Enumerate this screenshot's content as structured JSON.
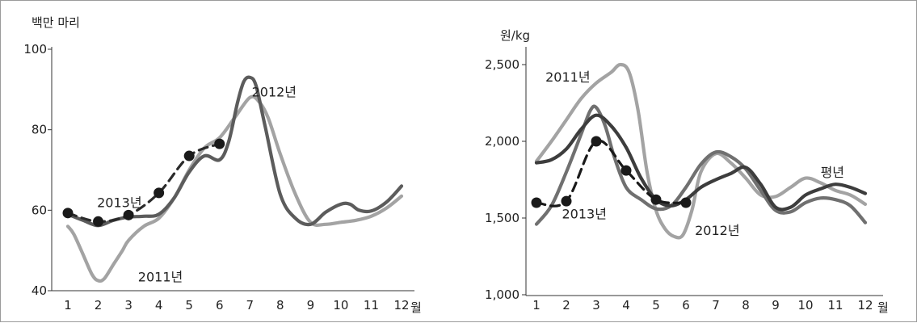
{
  "chart_data": [
    {
      "type": "line",
      "ylabel": "백만 마리",
      "xunit": "월",
      "ylim": [
        40,
        100
      ],
      "yticks": [
        40,
        60,
        80,
        100
      ],
      "x": [
        1,
        2,
        3,
        4,
        5,
        6,
        7,
        8,
        9,
        10,
        11,
        12
      ],
      "xtick_labels": [
        "1",
        "2",
        "3",
        "4",
        "5",
        "6",
        "7",
        "8",
        "9",
        "10",
        "11",
        "12"
      ],
      "grid": false,
      "series": [
        {
          "name": "2011년",
          "color": "#a3a3a3",
          "dashed": false,
          "x": [
            1,
            1.2,
            1.5,
            1.8,
            2,
            2.2,
            2.5,
            2.8,
            3,
            3.5,
            4,
            4.5,
            5,
            5.5,
            6,
            6.5,
            7,
            7.3,
            7.6,
            8,
            8.5,
            9,
            9.5,
            10,
            10.5,
            11,
            11.5,
            12
          ],
          "values": [
            56,
            54,
            49,
            44,
            42.5,
            43,
            46.5,
            50,
            52.5,
            56,
            58,
            63,
            70,
            75.5,
            78,
            83,
            88,
            87,
            83,
            74,
            64,
            57,
            56.5,
            57,
            57.5,
            58.5,
            60.5,
            63.5
          ]
        },
        {
          "name": "2012년",
          "color": "#5c5c5c",
          "dashed": false,
          "x": [
            1,
            1.5,
            2,
            2.5,
            3,
            3.5,
            4,
            4.5,
            5,
            5.5,
            6,
            6.3,
            6.6,
            6.8,
            7,
            7.2,
            7.5,
            8,
            8.5,
            9,
            9.5,
            10,
            10.3,
            10.6,
            11,
            11.5,
            12
          ],
          "values": [
            59,
            57.5,
            56.2,
            57.5,
            58.3,
            58.5,
            59,
            63,
            69.5,
            73.5,
            72.5,
            77,
            87,
            92,
            93,
            91,
            81,
            64,
            58,
            56.5,
            59.5,
            61.5,
            61.5,
            60,
            59.8,
            62,
            66
          ]
        },
        {
          "name": "2013년",
          "color": "#2b2b2b",
          "dashed": true,
          "markers": true,
          "x": [
            1,
            2,
            3,
            4,
            5,
            6
          ],
          "values": [
            59.3,
            57.2,
            58.8,
            64.3,
            73.5,
            76.5
          ]
        }
      ],
      "annotations": [
        {
          "text": "2012년",
          "x": 7.8,
          "y": 89.5
        },
        {
          "text": "2013년",
          "x": 2.7,
          "y": 62
        },
        {
          "text": "2011년",
          "x": 4.05,
          "y": 43.5
        }
      ]
    },
    {
      "type": "line",
      "ylabel": "원/kg",
      "xunit": "월",
      "ylim": [
        1000,
        2500
      ],
      "yticks": [
        1000,
        1500,
        2000,
        2500
      ],
      "ytick_labels": [
        "1,000",
        "1,500",
        "2,000",
        "2,500"
      ],
      "x": [
        1,
        2,
        3,
        4,
        5,
        6,
        7,
        8,
        9,
        10,
        11,
        12
      ],
      "xtick_labels": [
        "1",
        "2",
        "3",
        "4",
        "5",
        "6",
        "7",
        "8",
        "9",
        "10",
        "11",
        "12"
      ],
      "grid": false,
      "series": [
        {
          "name": "2011년",
          "color": "#a3a3a3",
          "dashed": false,
          "x": [
            1,
            1.5,
            2,
            2.5,
            3,
            3.5,
            3.8,
            4.1,
            4.4,
            4.7,
            5,
            5.3,
            5.6,
            5.9,
            6.2,
            6.5,
            7,
            7.5,
            8,
            8.5,
            9,
            9.5,
            10,
            10.5,
            11,
            11.5,
            12
          ],
          "values": [
            1870,
            2000,
            2140,
            2280,
            2380,
            2450,
            2500,
            2450,
            2200,
            1800,
            1550,
            1430,
            1380,
            1390,
            1550,
            1800,
            1920,
            1860,
            1760,
            1650,
            1640,
            1700,
            1760,
            1730,
            1680,
            1650,
            1590
          ]
        },
        {
          "name": "2012년",
          "color": "#707070",
          "dashed": false,
          "x": [
            1,
            1.5,
            2,
            2.5,
            2.8,
            3,
            3.3,
            3.6,
            4,
            4.5,
            5,
            5.5,
            6,
            6.5,
            7,
            7.5,
            8,
            8.5,
            9,
            9.5,
            10,
            10.5,
            11,
            11.5,
            12
          ],
          "values": [
            1460,
            1580,
            1800,
            2050,
            2200,
            2220,
            2100,
            1900,
            1700,
            1620,
            1560,
            1580,
            1700,
            1850,
            1930,
            1900,
            1820,
            1680,
            1550,
            1540,
            1600,
            1630,
            1620,
            1580,
            1470
          ]
        },
        {
          "name": "평년",
          "color": "#3d3d3d",
          "dashed": false,
          "x": [
            1,
            1.5,
            2,
            2.5,
            3,
            3.5,
            4,
            4.5,
            5,
            5.5,
            6,
            6.5,
            7,
            7.5,
            8,
            8.5,
            9,
            9.5,
            10,
            10.5,
            11,
            11.5,
            12
          ],
          "values": [
            1860,
            1880,
            1950,
            2080,
            2170,
            2100,
            1960,
            1760,
            1620,
            1580,
            1620,
            1700,
            1750,
            1790,
            1830,
            1720,
            1570,
            1570,
            1650,
            1690,
            1720,
            1700,
            1660
          ]
        },
        {
          "name": "2013년",
          "color": "#1a1a1a",
          "dashed": true,
          "markers": true,
          "x": [
            1,
            2,
            3,
            4,
            5,
            6
          ],
          "values": [
            1600,
            1610,
            2000,
            1810,
            1620,
            1600
          ]
        }
      ],
      "annotations": [
        {
          "text": "2011년",
          "x": 2.05,
          "y": 2420
        },
        {
          "text": "2013년",
          "x": 2.6,
          "y": 1530
        },
        {
          "text": "2012년",
          "x": 7.05,
          "y": 1420
        },
        {
          "text": "평년",
          "x": 10.9,
          "y": 1800
        }
      ]
    }
  ]
}
